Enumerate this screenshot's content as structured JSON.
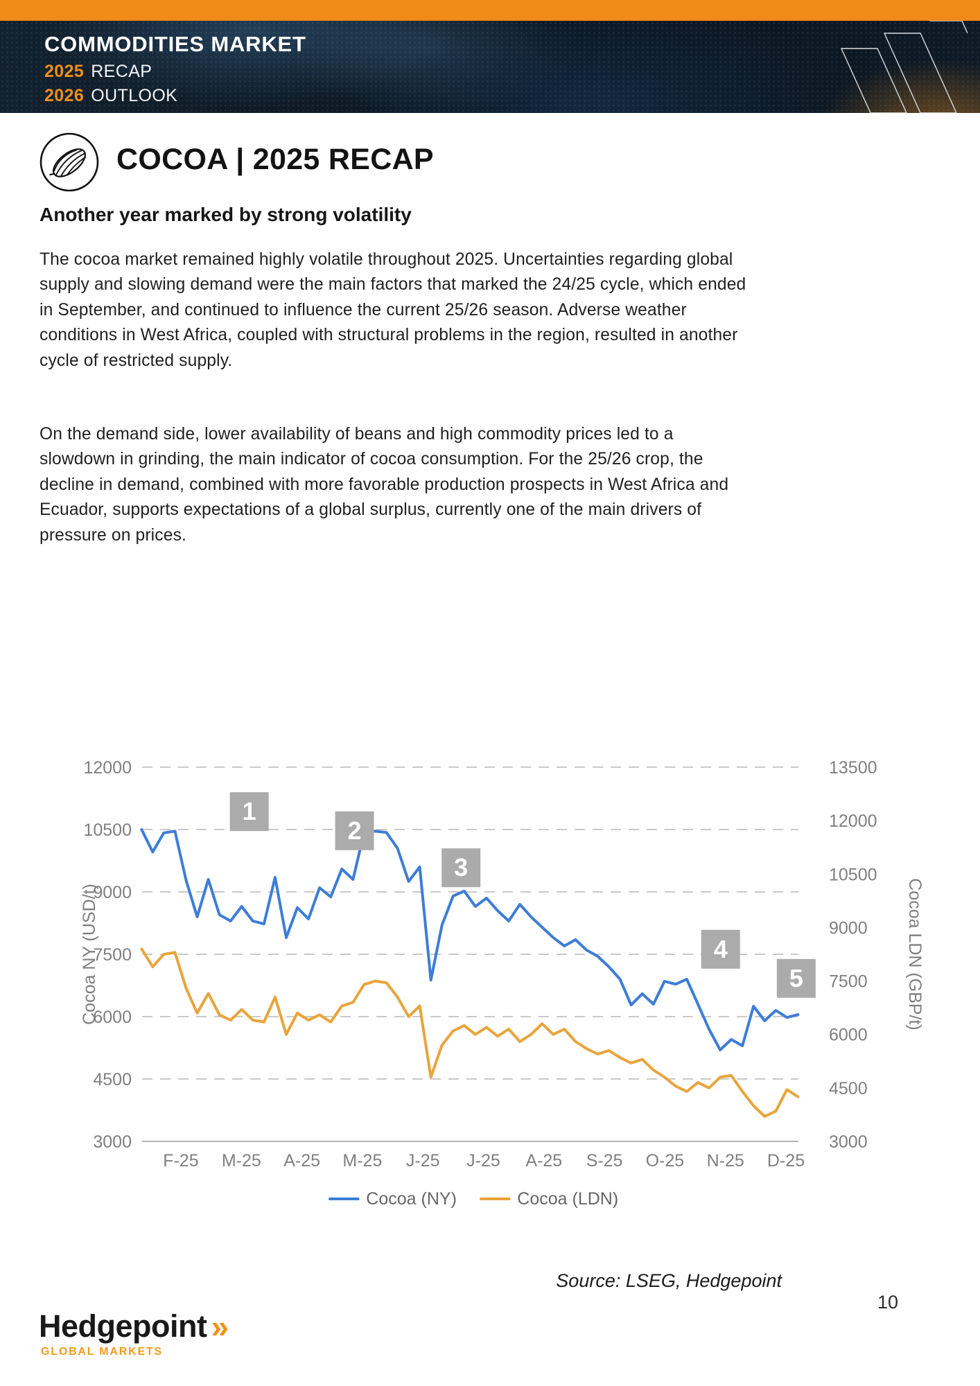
{
  "header": {
    "title": "COMMODITIES MARKET",
    "line1_year": "2025",
    "line1_text": "RECAP",
    "line2_year": "2026",
    "line2_text": "OUTLOOK"
  },
  "page": {
    "section_title": "COCOA | 2025 RECAP",
    "subtitle": "Another year marked by strong volatility",
    "paragraph1": "The cocoa market remained highly volatile throughout 2025. Uncertainties regarding global supply and slowing demand were the main factors that marked the 24/25 cycle, which ended in September, and continued to influence the current 25/26 season. Adverse weather conditions in West Africa, coupled with structural problems in the region, resulted in another cycle of restricted supply.",
    "paragraph2": "On the demand side, lower availability of beans and high commodity prices led to a slowdown in grinding, the main indicator of cocoa consumption. For the 25/26 crop, the decline in demand, combined with more favorable production prospects in West Africa and Ecuador, supports expectations of a global surplus, currently one of the main drivers of pressure on prices.",
    "source": "Source: LSEG, Hedgepoint",
    "page_number": "10"
  },
  "footer": {
    "brand": "Hedgepoint",
    "brand_mark": "»",
    "brand_sub": "GLOBAL MARKETS"
  },
  "colors": {
    "accent_orange": "#F08A18",
    "header_bg": "#0e1a26",
    "series_ny_blue": "#3D7DD7",
    "series_ldn_orange": "#E9A43C",
    "annotation_gray": "#ABABAB",
    "grid_gray": "#c9c9c9",
    "tick_text_gray": "#7f7f7f"
  },
  "chart_data": {
    "type": "line",
    "title": "",
    "grid": "horizontal dashed, solid baseline",
    "legend_position": "bottom center",
    "x_axis": {
      "unit": "month (2025)",
      "labels": [
        "F-25",
        "M-25",
        "A-25",
        "M-25",
        "J-25",
        "J-25",
        "A-25",
        "S-25",
        "O-25",
        "N-25",
        "D-25"
      ]
    },
    "left_axis": {
      "label": "Cocoa NY (USD/t)",
      "min": 3000,
      "max": 12000,
      "ticks": [
        3000,
        4500,
        6000,
        7500,
        9000,
        10500,
        12000
      ]
    },
    "right_axis": {
      "label": "Cocoa LDN (GBP/t)",
      "min": 3000,
      "max": 13500,
      "ticks": [
        3000,
        4500,
        6000,
        7500,
        9000,
        10500,
        12000,
        13500
      ]
    },
    "t_unit": "month index, 0 = F-25 tick, 10 = D-25 tick",
    "series": [
      {
        "name": "Cocoa (NY)",
        "axis": "left",
        "color": "#3D7DD7",
        "t_start": -0.65,
        "t_end": 10.2,
        "values": [
          10500,
          9960,
          10420,
          10460,
          9280,
          8400,
          9300,
          8450,
          8300,
          8650,
          8300,
          8230,
          9350,
          7900,
          8620,
          8350,
          9100,
          8880,
          9550,
          9300,
          10420,
          10460,
          10430,
          10050,
          9250,
          9600,
          6880,
          8200,
          8900,
          9020,
          8650,
          8850,
          8550,
          8300,
          8700,
          8400,
          8150,
          7900,
          7700,
          7850,
          7600,
          7450,
          7200,
          6900,
          6280,
          6550,
          6300,
          6850,
          6780,
          6900,
          6300,
          5700,
          5200,
          5450,
          5300,
          6250,
          5900,
          6150,
          5980,
          6050
        ]
      },
      {
        "name": "Cocoa (LDN)",
        "axis": "right",
        "color": "#E9A43C",
        "t_start": -0.65,
        "t_end": 10.2,
        "values": [
          8400,
          7900,
          8250,
          8300,
          7300,
          6600,
          7150,
          6550,
          6400,
          6700,
          6400,
          6350,
          7050,
          6000,
          6600,
          6400,
          6550,
          6350,
          6800,
          6900,
          7400,
          7500,
          7450,
          7050,
          6500,
          6800,
          4800,
          5700,
          6100,
          6250,
          6000,
          6200,
          5950,
          6150,
          5800,
          6000,
          6300,
          6000,
          6150,
          5800,
          5600,
          5450,
          5550,
          5350,
          5200,
          5300,
          5000,
          4800,
          4550,
          4400,
          4650,
          4500,
          4800,
          4850,
          4400,
          4000,
          3700,
          3850,
          4450,
          4250
        ]
      }
    ],
    "annotations": [
      {
        "label": "1",
        "t": 1.13,
        "value_left": 10930
      },
      {
        "label": "2",
        "t": 2.87,
        "value_left": 10470
      },
      {
        "label": "3",
        "t": 4.63,
        "value_left": 9580
      },
      {
        "label": "4",
        "t": 8.92,
        "value_left": 7620
      },
      {
        "label": "5",
        "t": 10.17,
        "value_left": 6920
      }
    ],
    "legend": [
      {
        "label": "Cocoa (NY)",
        "color": "#3D7DD7"
      },
      {
        "label": "Cocoa (LDN)",
        "color": "#E9A43C"
      }
    ]
  }
}
